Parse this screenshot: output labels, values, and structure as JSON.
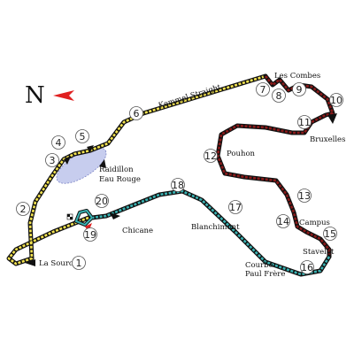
{
  "map": {
    "north_label": "N",
    "colors": {
      "sector1": "#f3e350",
      "sector2": "#8b1a1a",
      "sector3": "#3ab3b3",
      "outline": "#111111",
      "highlight": "#c7cdee",
      "north_arrow": "#e02020"
    },
    "labels": {
      "kemmel_straight": "Kemmel Straight",
      "les_combes": "Les Combes",
      "bruxelles": "Bruxelles",
      "pouhon": "Pouhon",
      "raidillon": "Raidillon",
      "eau_rouge": "Eau Rouge",
      "campus": "Campus",
      "stavelot": "Stavelot",
      "blanchimont": "Blanchimont",
      "chicane": "Chicane",
      "courbe": "Courbe",
      "paul_frere": "Paul Frère",
      "la_source": "La Source"
    },
    "corners": [
      "1",
      "2",
      "3",
      "4",
      "5",
      "6",
      "7",
      "8",
      "9",
      "10",
      "11",
      "12",
      "13",
      "14",
      "15",
      "16",
      "17",
      "18",
      "19",
      "20"
    ]
  }
}
